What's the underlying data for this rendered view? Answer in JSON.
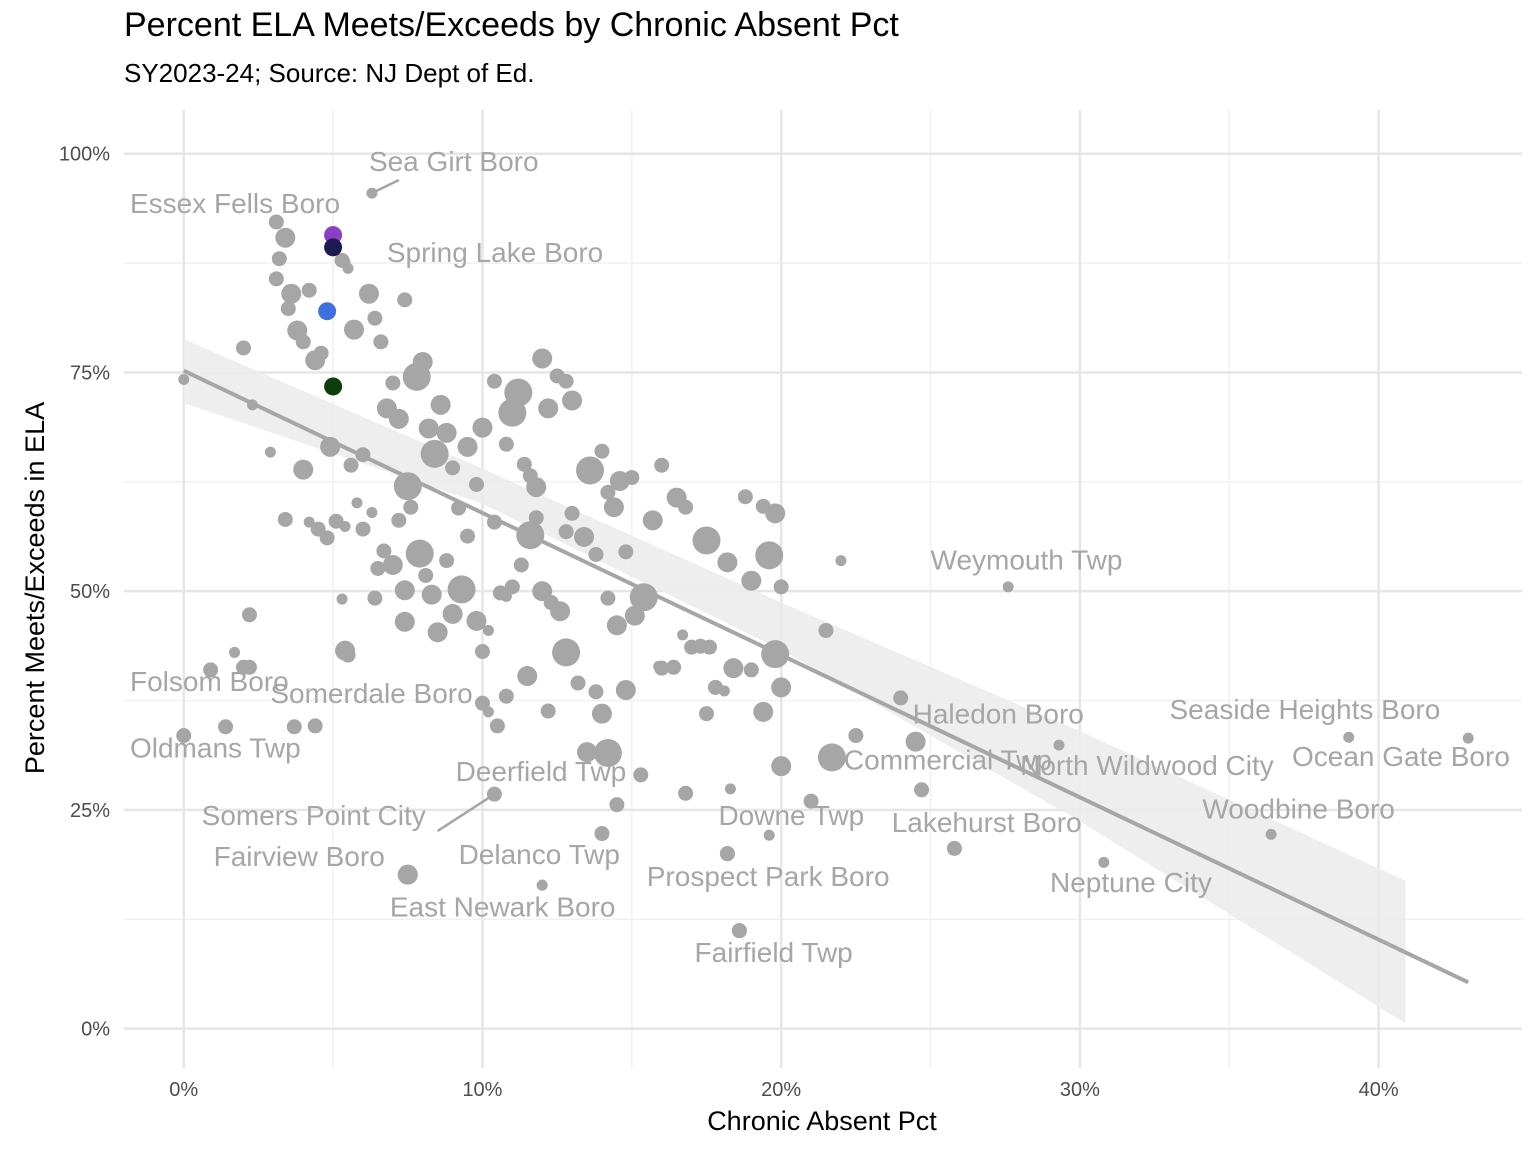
{
  "chart_data": {
    "type": "scatter",
    "title": "Percent ELA Meets/Exceeds by Chronic Absent Pct",
    "subtitle": "SY2023-24; Source: NJ Dept of Ed.",
    "xlabel": "Chronic Absent Pct",
    "ylabel": "Percent Meets/Exceeds in ELA",
    "xlim": [
      -0.02,
      0.448
    ],
    "ylim": [
      -0.045,
      1.05
    ],
    "x_ticks": [
      {
        "v": 0,
        "label": "0%"
      },
      {
        "v": 0.1,
        "label": "10%"
      },
      {
        "v": 0.2,
        "label": "20%"
      },
      {
        "v": 0.3,
        "label": "30%"
      },
      {
        "v": 0.4,
        "label": "40%"
      }
    ],
    "y_ticks": [
      {
        "v": 0,
        "label": "0%"
      },
      {
        "v": 0.25,
        "label": "25%"
      },
      {
        "v": 0.5,
        "label": "50%"
      },
      {
        "v": 0.75,
        "label": "75%"
      },
      {
        "v": 1,
        "label": "100%"
      }
    ],
    "grid": true,
    "legend": "none",
    "point_color": "#a6a6a6",
    "trend": {
      "x0": 0,
      "y0": 0.752,
      "x1": 0.43,
      "y1": 0.053,
      "color": "#a6a6a6",
      "band_color": "#ebebeb",
      "band_upper": [
        [
          0,
          0.788
        ],
        [
          0.1,
          0.64
        ],
        [
          0.2,
          0.487
        ],
        [
          0.3,
          0.34
        ],
        [
          0.409,
          0.169
        ]
      ],
      "band_lower": [
        [
          0,
          0.715
        ],
        [
          0.1,
          0.6
        ],
        [
          0.2,
          0.433
        ],
        [
          0.3,
          0.237
        ],
        [
          0.409,
          0.006
        ]
      ]
    },
    "highlights": [
      {
        "x": 0.05,
        "y": 0.907,
        "color": "#8b3fc4"
      },
      {
        "x": 0.05,
        "y": 0.893,
        "color": "#1c1c52"
      },
      {
        "x": 0.048,
        "y": 0.82,
        "color": "#3f6fe0"
      },
      {
        "x": 0.05,
        "y": 0.734,
        "color": "#0d3d0d"
      }
    ],
    "labeled_points": [
      {
        "name": "Sea Girt Boro",
        "x": 0.063,
        "y": 0.955,
        "s": 1
      },
      {
        "name": "Essex Fells Boro",
        "x": 0.031,
        "y": 0.922,
        "s": 2
      },
      {
        "name": "Spring Lake Boro",
        "x": 0.054,
        "y": 0.876,
        "s": 1
      },
      {
        "name": "Weymouth Twp",
        "x": 0.276,
        "y": 0.505,
        "s": 1
      },
      {
        "name": "Folsom Boro",
        "x": 0.022,
        "y": 0.413,
        "s": 2
      },
      {
        "name": "Somerdale Boro",
        "x": 0.044,
        "y": 0.346,
        "s": 2
      },
      {
        "name": "Oldmans Twp",
        "x": 0,
        "y": 0.335,
        "s": 2
      },
      {
        "name": "Haledon Boro",
        "x": 0.245,
        "y": 0.328,
        "s": 3
      },
      {
        "name": "Seaside Heights Boro",
        "x": 0.39,
        "y": 0.333,
        "s": 1
      },
      {
        "name": "Ocean Gate Boro",
        "x": 0.43,
        "y": 0.332,
        "s": 1
      },
      {
        "name": "North Wildwood City",
        "x": 0.293,
        "y": 0.324,
        "s": 1
      },
      {
        "name": "Commercial Twp",
        "x": 0.247,
        "y": 0.273,
        "s": 2
      },
      {
        "name": "Deerfield Twp",
        "x": 0.104,
        "y": 0.268,
        "s": 2
      },
      {
        "name": "Somers Point City",
        "x": 0.104,
        "y": 0.268,
        "s": 0
      },
      {
        "name": "Woodbine Boro",
        "x": 0.364,
        "y": 0.222,
        "s": 1
      },
      {
        "name": "Downe Twp",
        "x": 0.196,
        "y": 0.221,
        "s": 1
      },
      {
        "name": "Lakehurst Boro",
        "x": 0.258,
        "y": 0.206,
        "s": 2
      },
      {
        "name": "Fairview Boro",
        "x": 0.075,
        "y": 0.176,
        "s": 3
      },
      {
        "name": "Delanco Twp",
        "x": 0.12,
        "y": 0.164,
        "s": 1
      },
      {
        "name": "Prospect Park Boro",
        "x": 0.182,
        "y": 0.2,
        "s": 2
      },
      {
        "name": "Neptune City",
        "x": 0.308,
        "y": 0.19,
        "s": 1
      },
      {
        "name": "East Newark Boro",
        "x": 0.12,
        "y": 0.164,
        "s": 0
      },
      {
        "name": "Fairfield Twp",
        "x": 0.186,
        "y": 0.112,
        "s": 2
      }
    ],
    "points": [
      [
        0.0,
        0.742,
        1
      ],
      [
        0.02,
        0.778,
        2
      ],
      [
        0.023,
        0.713,
        1
      ],
      [
        0.029,
        0.659,
        1
      ],
      [
        0.031,
        0.857,
        2
      ],
      [
        0.032,
        0.88,
        2
      ],
      [
        0.034,
        0.904,
        3
      ],
      [
        0.035,
        0.823,
        2
      ],
      [
        0.036,
        0.84,
        3
      ],
      [
        0.038,
        0.798,
        3
      ],
      [
        0.04,
        0.785,
        2
      ],
      [
        0.042,
        0.844,
        2
      ],
      [
        0.044,
        0.764,
        3
      ],
      [
        0.046,
        0.772,
        2
      ],
      [
        0.049,
        0.665,
        3
      ],
      [
        0.053,
        0.878,
        2
      ],
      [
        0.055,
        0.869,
        1
      ],
      [
        0.057,
        0.799,
        3
      ],
      [
        0.06,
        0.656,
        2
      ],
      [
        0.062,
        0.84,
        3
      ],
      [
        0.064,
        0.812,
        2
      ],
      [
        0.066,
        0.785,
        2
      ],
      [
        0.068,
        0.709,
        3
      ],
      [
        0.07,
        0.738,
        2
      ],
      [
        0.072,
        0.697,
        3
      ],
      [
        0.074,
        0.833,
        2
      ],
      [
        0.075,
        0.62,
        4
      ],
      [
        0.078,
        0.745,
        4
      ],
      [
        0.08,
        0.762,
        3
      ],
      [
        0.082,
        0.686,
        3
      ],
      [
        0.084,
        0.657,
        4
      ],
      [
        0.086,
        0.713,
        3
      ],
      [
        0.088,
        0.681,
        3
      ],
      [
        0.09,
        0.641,
        2
      ],
      [
        0.092,
        0.595,
        2
      ],
      [
        0.095,
        0.665,
        3
      ],
      [
        0.098,
        0.622,
        2
      ],
      [
        0.1,
        0.687,
        3
      ],
      [
        0.104,
        0.74,
        2
      ],
      [
        0.108,
        0.668,
        2
      ],
      [
        0.11,
        0.704,
        4
      ],
      [
        0.112,
        0.727,
        4
      ],
      [
        0.114,
        0.645,
        2
      ],
      [
        0.116,
        0.632,
        2
      ],
      [
        0.118,
        0.619,
        3
      ],
      [
        0.12,
        0.766,
        3
      ],
      [
        0.122,
        0.709,
        3
      ],
      [
        0.125,
        0.746,
        2
      ],
      [
        0.128,
        0.74,
        2
      ],
      [
        0.13,
        0.718,
        3
      ],
      [
        0.136,
        0.638,
        4
      ],
      [
        0.14,
        0.66,
        2
      ],
      [
        0.142,
        0.613,
        2
      ],
      [
        0.144,
        0.596,
        3
      ],
      [
        0.146,
        0.626,
        3
      ],
      [
        0.15,
        0.63,
        2
      ],
      [
        0.16,
        0.644,
        2
      ],
      [
        0.165,
        0.607,
        3
      ],
      [
        0.168,
        0.596,
        2
      ],
      [
        0.175,
        0.558,
        4
      ],
      [
        0.182,
        0.533,
        3
      ],
      [
        0.188,
        0.608,
        2
      ],
      [
        0.19,
        0.512,
        3
      ],
      [
        0.194,
        0.597,
        2
      ],
      [
        0.196,
        0.541,
        4
      ],
      [
        0.198,
        0.589,
        3
      ],
      [
        0.2,
        0.505,
        2
      ],
      [
        0.022,
        0.473,
        2
      ],
      [
        0.02,
        0.413,
        2
      ],
      [
        0.034,
        0.582,
        2
      ],
      [
        0.04,
        0.639,
        3
      ],
      [
        0.042,
        0.579,
        1
      ],
      [
        0.045,
        0.571,
        2
      ],
      [
        0.048,
        0.561,
        2
      ],
      [
        0.051,
        0.58,
        2
      ],
      [
        0.054,
        0.574,
        1
      ],
      [
        0.056,
        0.644,
        2
      ],
      [
        0.058,
        0.601,
        1
      ],
      [
        0.06,
        0.571,
        2
      ],
      [
        0.063,
        0.59,
        1
      ],
      [
        0.065,
        0.526,
        2
      ],
      [
        0.067,
        0.546,
        2
      ],
      [
        0.07,
        0.53,
        3
      ],
      [
        0.072,
        0.581,
        2
      ],
      [
        0.074,
        0.501,
        3
      ],
      [
        0.076,
        0.596,
        2
      ],
      [
        0.079,
        0.543,
        4
      ],
      [
        0.081,
        0.518,
        2
      ],
      [
        0.083,
        0.496,
        3
      ],
      [
        0.085,
        0.453,
        3
      ],
      [
        0.088,
        0.535,
        2
      ],
      [
        0.09,
        0.474,
        3
      ],
      [
        0.093,
        0.502,
        4
      ],
      [
        0.095,
        0.563,
        2
      ],
      [
        0.098,
        0.466,
        3
      ],
      [
        0.1,
        0.431,
        2
      ],
      [
        0.102,
        0.455,
        1
      ],
      [
        0.104,
        0.579,
        2
      ],
      [
        0.106,
        0.498,
        2
      ],
      [
        0.108,
        0.494,
        1
      ],
      [
        0.11,
        0.505,
        2
      ],
      [
        0.113,
        0.53,
        2
      ],
      [
        0.116,
        0.564,
        4
      ],
      [
        0.118,
        0.584,
        2
      ],
      [
        0.12,
        0.5,
        3
      ],
      [
        0.123,
        0.487,
        2
      ],
      [
        0.126,
        0.477,
        3
      ],
      [
        0.128,
        0.568,
        2
      ],
      [
        0.13,
        0.589,
        2
      ],
      [
        0.134,
        0.562,
        3
      ],
      [
        0.138,
        0.542,
        2
      ],
      [
        0.142,
        0.492,
        2
      ],
      [
        0.145,
        0.461,
        3
      ],
      [
        0.148,
        0.545,
        2
      ],
      [
        0.151,
        0.472,
        3
      ],
      [
        0.154,
        0.493,
        4
      ],
      [
        0.157,
        0.581,
        3
      ],
      [
        0.16,
        0.412,
        2
      ],
      [
        0.164,
        0.413,
        2
      ],
      [
        0.167,
        0.45,
        1
      ],
      [
        0.17,
        0.436,
        2
      ],
      [
        0.173,
        0.437,
        2
      ],
      [
        0.176,
        0.436,
        2
      ],
      [
        0.178,
        0.39,
        2
      ],
      [
        0.181,
        0.386,
        1
      ],
      [
        0.184,
        0.412,
        3
      ],
      [
        0.19,
        0.41,
        2
      ],
      [
        0.198,
        0.428,
        4
      ],
      [
        0.215,
        0.455,
        2
      ],
      [
        0.22,
        0.535,
        1
      ],
      [
        0.009,
        0.41,
        2
      ],
      [
        0.017,
        0.43,
        1
      ],
      [
        0.053,
        0.491,
        1
      ],
      [
        0.054,
        0.432,
        3
      ],
      [
        0.055,
        0.427,
        2
      ],
      [
        0.064,
        0.492,
        2
      ],
      [
        0.074,
        0.465,
        3
      ],
      [
        0.1,
        0.372,
        2
      ],
      [
        0.102,
        0.362,
        1
      ],
      [
        0.105,
        0.346,
        2
      ],
      [
        0.108,
        0.38,
        2
      ],
      [
        0.115,
        0.403,
        3
      ],
      [
        0.122,
        0.363,
        2
      ],
      [
        0.128,
        0.43,
        4
      ],
      [
        0.132,
        0.395,
        2
      ],
      [
        0.135,
        0.316,
        3
      ],
      [
        0.138,
        0.385,
        2
      ],
      [
        0.14,
        0.36,
        3
      ],
      [
        0.142,
        0.315,
        4
      ],
      [
        0.145,
        0.256,
        2
      ],
      [
        0.148,
        0.387,
        3
      ],
      [
        0.153,
        0.29,
        2
      ],
      [
        0.159,
        0.414,
        1
      ],
      [
        0.168,
        0.269,
        2
      ],
      [
        0.175,
        0.36,
        2
      ],
      [
        0.183,
        0.274,
        1
      ],
      [
        0.194,
        0.362,
        3
      ],
      [
        0.2,
        0.3,
        3
      ],
      [
        0.2,
        0.39,
        3
      ],
      [
        0.21,
        0.26,
        2
      ],
      [
        0.217,
        0.31,
        4
      ],
      [
        0.225,
        0.335,
        2
      ],
      [
        0.24,
        0.378,
        2
      ],
      [
        0.14,
        0.223,
        2
      ],
      [
        0.075,
        0.176,
        3
      ],
      [
        0.12,
        0.164,
        1
      ],
      [
        0.182,
        0.2,
        2
      ],
      [
        0.186,
        0.112,
        2
      ],
      [
        0.014,
        0.345,
        2
      ],
      [
        0.037,
        0.345,
        2
      ]
    ]
  }
}
